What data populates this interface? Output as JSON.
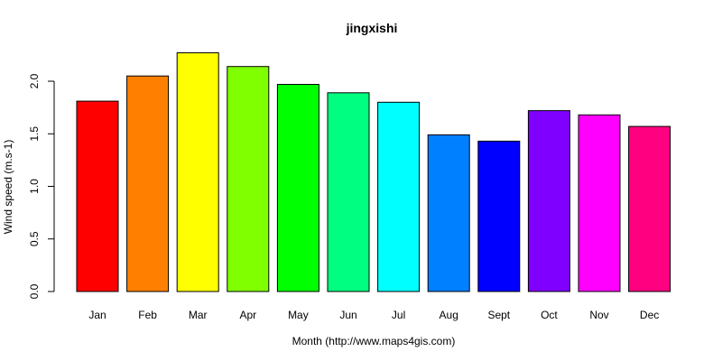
{
  "chart_data": {
    "type": "bar",
    "title": "jingxishi",
    "xlabel": "Month (http://www.maps4gis.com)",
    "ylabel": "Wind speed (m.s-1)",
    "categories": [
      "Jan",
      "Feb",
      "Mar",
      "Apr",
      "May",
      "Jun",
      "Jul",
      "Aug",
      "Sept",
      "Oct",
      "Nov",
      "Dec"
    ],
    "values": [
      1.81,
      2.05,
      2.27,
      2.14,
      1.97,
      1.89,
      1.8,
      1.49,
      1.43,
      1.72,
      1.68,
      1.57
    ],
    "colors": [
      "#FF0000",
      "#FF8000",
      "#FFFF00",
      "#80FF00",
      "#00FF00",
      "#00FF80",
      "#00FFFF",
      "#0080FF",
      "#0000FF",
      "#8000FF",
      "#FF00FF",
      "#FF0080"
    ],
    "yticks": [
      0.0,
      0.5,
      1.0,
      1.5,
      2.0
    ],
    "ytick_labels": [
      "0.0",
      "0.5",
      "1.0",
      "1.5",
      "2.0"
    ],
    "ylim": [
      0,
      2.27
    ],
    "grid": false,
    "legend": "none"
  }
}
